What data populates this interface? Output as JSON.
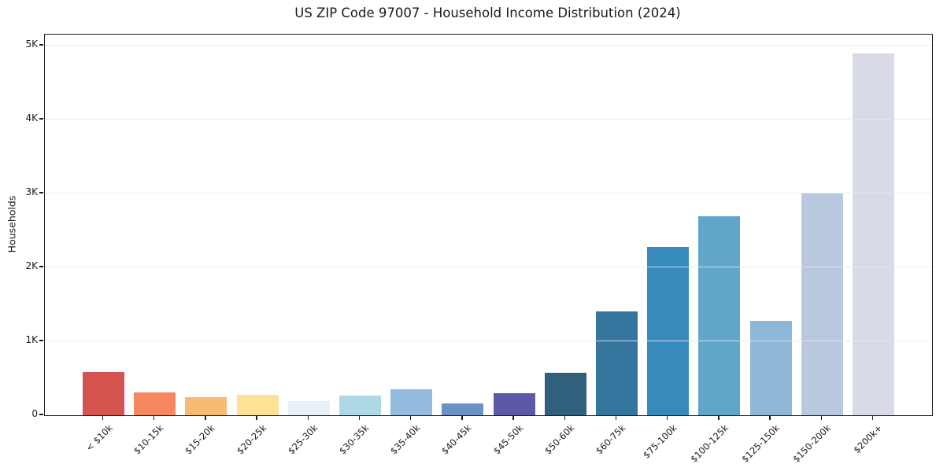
{
  "figure": {
    "title": "US ZIP Code 97007 - Household Income Distribution (2024)",
    "background_color": "#ffffff",
    "text_color": "#1a1a1a"
  },
  "chart_data": {
    "type": "bar",
    "title": "US ZIP Code 97007 - Household Income Distribution (2024)",
    "xlabel": "",
    "ylabel": "Households",
    "categories": [
      "< $10k",
      "$10-15k",
      "$15-20k",
      "$20-25k",
      "$25-30k",
      "$30-35k",
      "$35-40k",
      "$40-45k",
      "$45-50k",
      "$50-60k",
      "$60-75k",
      "$75-100k",
      "$100-125k",
      "$125-150k",
      "$150-200k",
      "$200k+"
    ],
    "values": [
      590,
      310,
      250,
      280,
      190,
      270,
      350,
      160,
      300,
      580,
      1400,
      2280,
      2690,
      1280,
      3000,
      4890
    ],
    "bar_colors": [
      "#d5544f",
      "#f58860",
      "#f9ba72",
      "#fde295",
      "#e6f2f5",
      "#afd8e6",
      "#92bbde",
      "#6b92c7",
      "#5b59a8",
      "#31607c",
      "#35759d",
      "#378abc",
      "#5fa6ca",
      "#8eb6d6",
      "#b9c8df",
      "#d8dbe7"
    ],
    "yticks": [
      {
        "value": 0,
        "label": "0"
      },
      {
        "value": 1000,
        "label": "1K"
      },
      {
        "value": 2000,
        "label": "2K"
      },
      {
        "value": 3000,
        "label": "3K"
      },
      {
        "value": 4000,
        "label": "4K"
      },
      {
        "value": 5000,
        "label": "5K"
      }
    ],
    "ylim": [
      0,
      5150
    ],
    "grid": "horizontal",
    "grid_color": "#e7e8ef",
    "legend": "none",
    "x_tick_label_rotation_deg": 45
  }
}
